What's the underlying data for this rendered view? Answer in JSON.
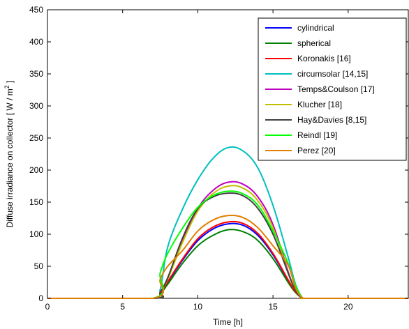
{
  "chart_data": {
    "type": "line",
    "xlabel": "Time [h]",
    "ylabel": "Diffuse irradiance on collector  [ W / m",
    "ylabel_sup": "2",
    "ylabel_end": " ]",
    "xlim": [
      0,
      24
    ],
    "ylim": [
      0,
      450
    ],
    "xticks": [
      0,
      5,
      10,
      15,
      20
    ],
    "yticks": [
      0,
      50,
      100,
      150,
      200,
      250,
      300,
      350,
      400,
      450
    ],
    "grid": false,
    "legend_position": "top-right",
    "x": [
      0,
      7.0,
      7.5,
      8,
      9,
      10,
      11,
      12,
      13,
      14,
      15,
      16,
      16.5,
      17,
      17.5,
      24
    ],
    "series": [
      {
        "name": "cylindrical",
        "color": "#0000ff",
        "values": [
          0,
          0,
          8,
          25,
          60,
          90,
          108,
          116,
          114,
          98,
          68,
          28,
          10,
          0,
          0,
          0
        ]
      },
      {
        "name": "spherical",
        "color": "#008000",
        "values": [
          0,
          0,
          7,
          22,
          55,
          82,
          98,
          107,
          104,
          90,
          62,
          25,
          9,
          0,
          0,
          0
        ]
      },
      {
        "name": "Koronakis [16]",
        "color": "#ff0000",
        "values": [
          0,
          0,
          8,
          26,
          62,
          93,
          111,
          119,
          117,
          101,
          70,
          29,
          10,
          0,
          0,
          0
        ]
      },
      {
        "name": "circumsolar [14,15]",
        "color": "#00bfbf",
        "values": [
          0,
          0,
          14,
          80,
          140,
          185,
          218,
          235,
          230,
          203,
          145,
          65,
          22,
          0,
          0,
          0
        ]
      },
      {
        "name": "Temps&Coulson [17]",
        "color": "#bf00bf",
        "values": [
          0,
          0,
          10,
          32,
          90,
          140,
          168,
          181,
          178,
          158,
          115,
          42,
          12,
          0,
          0,
          0
        ]
      },
      {
        "name": "Klucher [18]",
        "color": "#bfbf00",
        "values": [
          0,
          0,
          10,
          30,
          88,
          136,
          163,
          175,
          172,
          152,
          110,
          40,
          12,
          0,
          0,
          0
        ]
      },
      {
        "name": "Hay&Davies [8,15]",
        "color": "#404040",
        "values": [
          0,
          0,
          10,
          32,
          95,
          140,
          158,
          164,
          160,
          140,
          100,
          40,
          12,
          0,
          0,
          0
        ]
      },
      {
        "name": "Reindl [19]",
        "color": "#00ff00",
        "values": [
          0,
          0,
          40,
          70,
          110,
          142,
          160,
          167,
          163,
          145,
          105,
          55,
          20,
          0,
          0,
          0
        ]
      },
      {
        "name": "Perez [20]",
        "color": "#e07f00",
        "values": [
          0,
          0,
          30,
          50,
          75,
          105,
          122,
          129,
          126,
          110,
          82,
          52,
          16,
          0,
          0,
          0
        ]
      }
    ]
  }
}
